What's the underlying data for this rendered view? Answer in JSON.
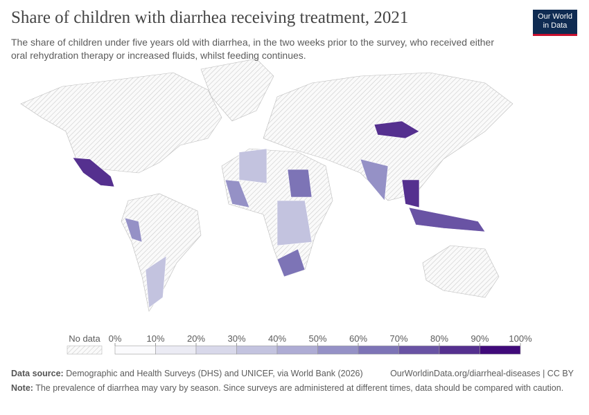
{
  "chart_data": {
    "type": "choropleth",
    "title": "Share of children with diarrhea receiving treatment, 2021",
    "subtitle": "The share of children under five years old with diarrhea, in the two weeks prior to the survey, who received either oral rehydration therapy or increased fluids, whilst feeding continues.",
    "logo": [
      "Our World",
      "in Data"
    ],
    "no_data_label": "No data",
    "legend_ticks": [
      {
        "value": 0,
        "label": "0%"
      },
      {
        "value": 10,
        "label": "10%"
      },
      {
        "value": 20,
        "label": "20%"
      },
      {
        "value": 30,
        "label": "30%"
      },
      {
        "value": 40,
        "label": "40%"
      },
      {
        "value": 50,
        "label": "50%"
      },
      {
        "value": 60,
        "label": "60%"
      },
      {
        "value": 70,
        "label": "70%"
      },
      {
        "value": 80,
        "label": "80%"
      },
      {
        "value": 90,
        "label": "90%"
      },
      {
        "value": 100,
        "label": "100%"
      }
    ],
    "colors": [
      "#fbfbfd",
      "#ebebf4",
      "#d8d8ea",
      "#c3c3df",
      "#aeacd4",
      "#9591c6",
      "#7d74b6",
      "#6953a4",
      "#55308f",
      "#400a7a"
    ],
    "source_label": "Data source:",
    "source_text": "Demographic and Health Surveys (DHS) and UNICEF, via World Bank (2026)",
    "url": "OurWorldinData.org/diarrheal-diseases | CC BY",
    "note_label": "Note:",
    "note_text": "The prevalence of diarrhea may vary by season. Since surveys are administered at different times, data should be compared with caution."
  }
}
